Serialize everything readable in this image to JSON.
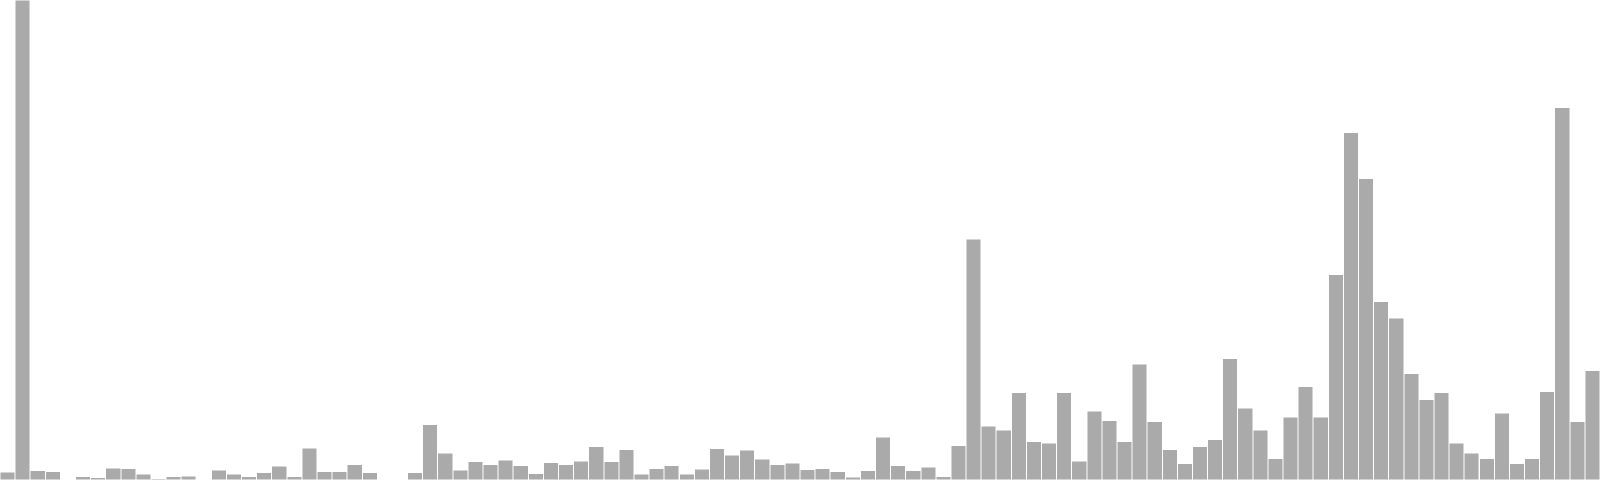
{
  "chart_data": {
    "type": "bar",
    "title": "",
    "xlabel": "",
    "ylabel": "",
    "ylim": [
      0,
      100
    ],
    "grid": false,
    "legend": "none",
    "bar_color": "#aaaaaa",
    "bar_edge_color": "#ffffff",
    "values": [
      1.7,
      100,
      2,
      1.8,
      0,
      0.7,
      0.5,
      2.5,
      2.4,
      1.3,
      0.3,
      0.7,
      0.8,
      0,
      2.1,
      1.3,
      0.7,
      1.6,
      2.9,
      0.7,
      6.7,
      1.8,
      1.8,
      3.2,
      1.6,
      0,
      0,
      1.6,
      11.6,
      5.6,
      2.1,
      3.9,
      3.2,
      4.2,
      3.0,
      1.4,
      3.6,
      3.2,
      4.0,
      7.0,
      3.9,
      6.4,
      1.3,
      2.4,
      3.0,
      1.3,
      2.3,
      6.6,
      5.2,
      6.3,
      4.4,
      3.2,
      3.5,
      2.2,
      2.4,
      1.8,
      0.6,
      2.0,
      9.0,
      3.0,
      2.0,
      2.7,
      0.7,
      7.2,
      50.2,
      11.3,
      10.4,
      18.2,
      8.0,
      7.7,
      18.2,
      4.0,
      14.4,
      12.4,
      8.0,
      24.2,
      12.2,
      6.4,
      3.4,
      7.0,
      8.4,
      25.3,
      15.0,
      10.4,
      4.5,
      13.1,
      19.5,
      13.1,
      42.8,
      72.4,
      62.8,
      37.2,
      33.7,
      22.2,
      16.8,
      18.2,
      7.7,
      5.6,
      4.5,
      14.0,
      3.4,
      4.5,
      18.4,
      77.6,
      12.2,
      22.8
    ]
  }
}
